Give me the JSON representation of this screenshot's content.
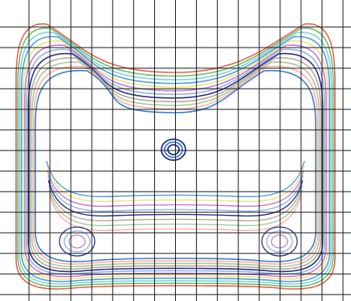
{
  "figure": {
    "kind": "contour-map-on-grid",
    "grid": {
      "columns": 16,
      "rows": 14,
      "color": "#1a1a1a"
    },
    "contour_colors": [
      "#e8604c",
      "#6fbf6a",
      "#7fd0e6",
      "#4fa0d8",
      "#f2e27a",
      "#c67ad6",
      "#8fb4e8",
      "#2a2f86",
      "#b8a890",
      "#a8c8a0",
      "#ffb0a0",
      "#3a7fd0"
    ],
    "outer_shells": 12,
    "inner_bands": 8,
    "center_rings": 3
  }
}
